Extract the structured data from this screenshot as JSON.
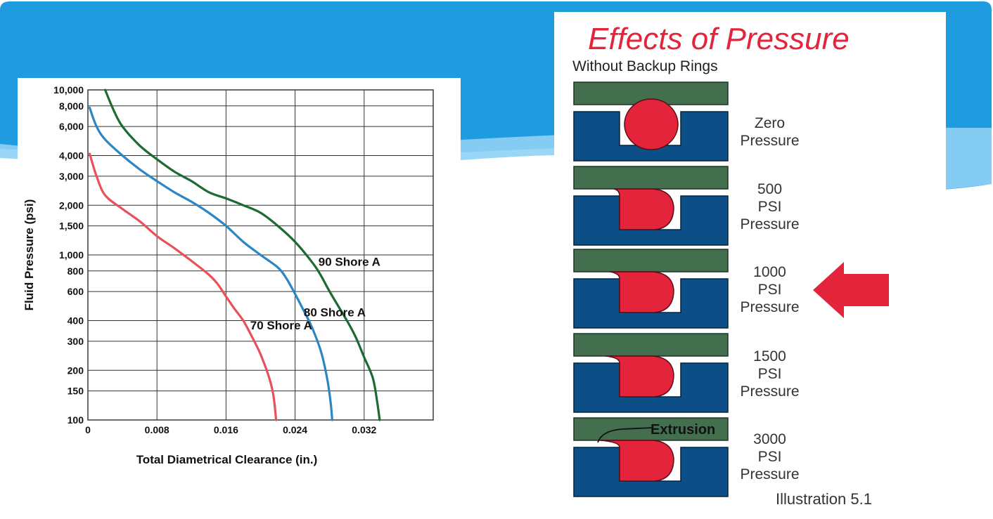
{
  "colors": {
    "slide_blue": "#1f9be0",
    "wave_light": "#8fd1f5",
    "plate_green": "#436f4f",
    "gland_blue": "#0b4f86",
    "oring_red": "#e3243b",
    "curve_70": "#e8505a",
    "curve_80": "#2a86c4",
    "curve_90": "#1d6a33",
    "title_red": "#e3243b"
  },
  "chart_data": {
    "type": "line",
    "title": "",
    "xlabel": "Total Diametrical Clearance (in.)",
    "ylabel": "Fluid Pressure (psi)",
    "x_scale": "linear",
    "y_scale": "log",
    "xlim": [
      0,
      0.04
    ],
    "ylim": [
      100,
      10000
    ],
    "x_ticks": [
      0,
      0.008,
      0.016,
      0.024,
      0.032
    ],
    "x_tick_labels": [
      "0",
      "0.008",
      "0.016",
      "0.024",
      "0.032"
    ],
    "y_ticks": [
      100,
      150,
      200,
      300,
      400,
      600,
      800,
      1000,
      1500,
      2000,
      3000,
      4000,
      6000,
      8000,
      10000
    ],
    "y_tick_labels": [
      "100",
      "150",
      "200",
      "300",
      "400",
      "600",
      "800",
      "1,000",
      "1,500",
      "2,000",
      "3,000",
      "4,000",
      "6,000",
      "8,000",
      "10,000"
    ],
    "grid": true,
    "series": [
      {
        "name": "70 Shore A",
        "color": "#e8505a",
        "points": [
          [
            0.0002,
            4100
          ],
          [
            0.001,
            3000
          ],
          [
            0.002,
            2300
          ],
          [
            0.004,
            1900
          ],
          [
            0.006,
            1600
          ],
          [
            0.008,
            1300
          ],
          [
            0.01,
            1100
          ],
          [
            0.012,
            920
          ],
          [
            0.014,
            760
          ],
          [
            0.015,
            670
          ],
          [
            0.016,
            560
          ],
          [
            0.017,
            470
          ],
          [
            0.018,
            400
          ],
          [
            0.019,
            320
          ],
          [
            0.02,
            250
          ],
          [
            0.021,
            180
          ],
          [
            0.0215,
            140
          ],
          [
            0.0218,
            100
          ]
        ]
      },
      {
        "name": "80 Shore A",
        "color": "#2a86c4",
        "points": [
          [
            0.0002,
            7800
          ],
          [
            0.001,
            6000
          ],
          [
            0.002,
            5000
          ],
          [
            0.004,
            4000
          ],
          [
            0.006,
            3300
          ],
          [
            0.008,
            2800
          ],
          [
            0.01,
            2400
          ],
          [
            0.012,
            2100
          ],
          [
            0.014,
            1800
          ],
          [
            0.016,
            1500
          ],
          [
            0.018,
            1200
          ],
          [
            0.02,
            1000
          ],
          [
            0.022,
            840
          ],
          [
            0.023,
            720
          ],
          [
            0.024,
            580
          ],
          [
            0.025,
            460
          ],
          [
            0.026,
            360
          ],
          [
            0.027,
            260
          ],
          [
            0.0277,
            180
          ],
          [
            0.0281,
            130
          ],
          [
            0.0283,
            100
          ]
        ]
      },
      {
        "name": "90 Shore A",
        "color": "#1d6a33",
        "points": [
          [
            0.002,
            10000
          ],
          [
            0.003,
            7500
          ],
          [
            0.004,
            6000
          ],
          [
            0.006,
            4600
          ],
          [
            0.008,
            3800
          ],
          [
            0.01,
            3200
          ],
          [
            0.012,
            2800
          ],
          [
            0.014,
            2400
          ],
          [
            0.016,
            2200
          ],
          [
            0.018,
            2000
          ],
          [
            0.02,
            1800
          ],
          [
            0.022,
            1500
          ],
          [
            0.024,
            1200
          ],
          [
            0.026,
            900
          ],
          [
            0.027,
            750
          ],
          [
            0.028,
            600
          ],
          [
            0.03,
            400
          ],
          [
            0.031,
            320
          ],
          [
            0.032,
            240
          ],
          [
            0.033,
            180
          ],
          [
            0.0335,
            130
          ],
          [
            0.0338,
            100
          ]
        ]
      }
    ],
    "annotations": [
      {
        "text": "90 Shore A",
        "x": 0.0267,
        "y": 910
      },
      {
        "text": "80 Shore A",
        "x": 0.025,
        "y": 450
      },
      {
        "text": "70 Shore A",
        "x": 0.0188,
        "y": 375
      }
    ]
  },
  "diagram": {
    "title": "Effects of Pressure",
    "subtitle": "Without Backup Rings",
    "stages": [
      {
        "label": "Zero\nPressure",
        "pressure": 0
      },
      {
        "label": "500\nPSI\nPressure",
        "pressure": 500
      },
      {
        "label": "1000\nPSI\nPressure",
        "pressure": 1000,
        "highlighted": true
      },
      {
        "label": "1500\nPSI\nPressure",
        "pressure": 1500
      },
      {
        "label": "3000\nPSI\nPressure",
        "pressure": 3000
      }
    ],
    "extrusion_label": "Extrusion",
    "illustration_caption": "Illustration 5.1",
    "arrow_icon": "left-arrow-icon"
  }
}
